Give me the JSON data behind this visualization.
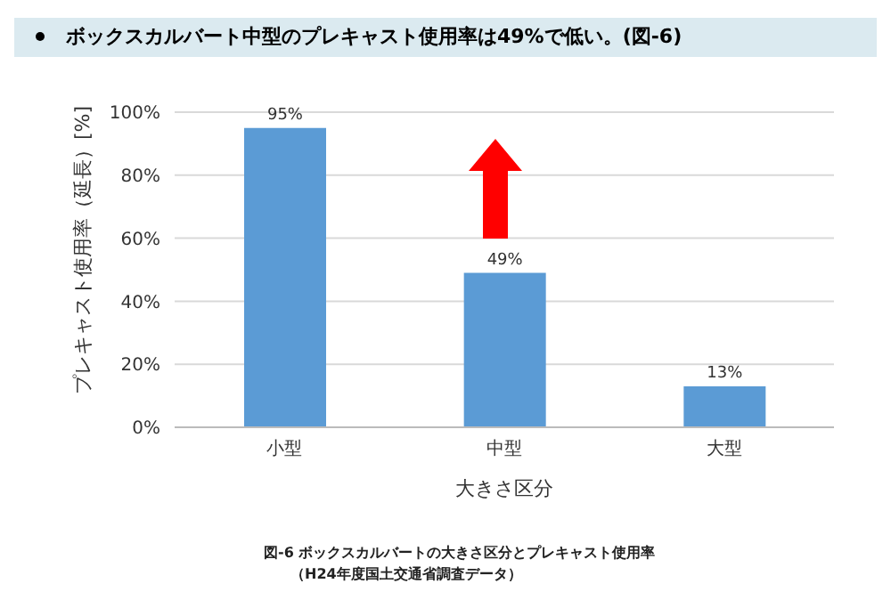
{
  "chart_data": {
    "type": "bar",
    "title": "ボックスカルバート中型のプレキャスト使用率は49%で低い。(図-6)",
    "xlabel": "大きさ区分",
    "ylabel": "プレキャスト使用率（延長）[%]",
    "categories": [
      "小型",
      "中型",
      "大型"
    ],
    "values": [
      95,
      49,
      13
    ],
    "value_labels": [
      "95%",
      "49%",
      "13%"
    ],
    "color": "#5b9bd5",
    "ylim": [
      0,
      100
    ],
    "yticks": [
      {
        "value": 0,
        "label": "0%"
      },
      {
        "value": 20,
        "label": "20%"
      },
      {
        "value": 40,
        "label": "40%"
      },
      {
        "value": 60,
        "label": "60%"
      },
      {
        "value": 80,
        "label": "80%"
      },
      {
        "value": 100,
        "label": "100%"
      }
    ],
    "grid": "y",
    "annotations": [
      "図-6 ボックスカルバートの大きさ区分とプレキャスト使用率",
      "（H24年度国土交通省調査データ）"
    ]
  }
}
